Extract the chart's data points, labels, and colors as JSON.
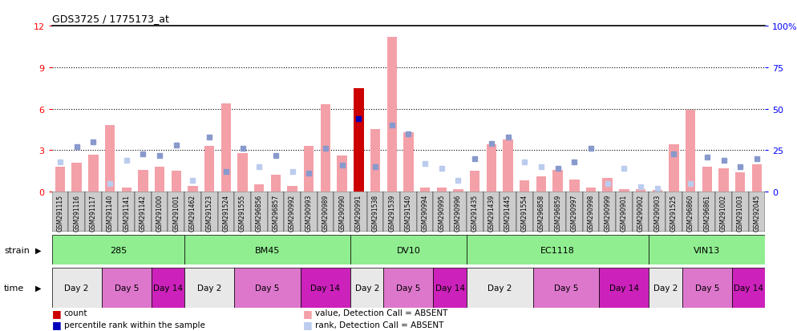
{
  "title": "GDS3725 / 1775173_at",
  "samples": [
    "GSM291115",
    "GSM291116",
    "GSM291117",
    "GSM291140",
    "GSM291141",
    "GSM291142",
    "GSM291000",
    "GSM291001",
    "GSM291462",
    "GSM291523",
    "GSM291524",
    "GSM291555",
    "GSM296856",
    "GSM296857",
    "GSM290992",
    "GSM290993",
    "GSM290989",
    "GSM290990",
    "GSM290991",
    "GSM291538",
    "GSM291539",
    "GSM291540",
    "GSM290994",
    "GSM290995",
    "GSM290996",
    "GSM291435",
    "GSM291439",
    "GSM291445",
    "GSM291554",
    "GSM296858",
    "GSM296859",
    "GSM290997",
    "GSM290998",
    "GSM290999",
    "GSM290901",
    "GSM290902",
    "GSM290903",
    "GSM291525",
    "GSM296860",
    "GSM296861",
    "GSM291002",
    "GSM291003",
    "GSM292045"
  ],
  "values": [
    1.8,
    2.1,
    2.7,
    4.8,
    0.3,
    1.6,
    1.8,
    1.5,
    0.4,
    3.3,
    6.4,
    2.8,
    0.5,
    1.2,
    0.4,
    3.3,
    6.3,
    2.6,
    7.5,
    4.5,
    11.2,
    4.3,
    0.3,
    0.3,
    0.2,
    1.5,
    3.4,
    3.8,
    0.8,
    1.1,
    1.6,
    0.9,
    0.3,
    1.0,
    0.2,
    0.2,
    0.1,
    3.4,
    5.9,
    1.8,
    1.7,
    1.4,
    2.0
  ],
  "ranks_pct": [
    18,
    27,
    30,
    5,
    19,
    23,
    22,
    28,
    7,
    33,
    12,
    26,
    15,
    22,
    12,
    11,
    26,
    16,
    44,
    15,
    40,
    35,
    17,
    14,
    7,
    20,
    29,
    33,
    18,
    15,
    14,
    18,
    26,
    5,
    14,
    3,
    2,
    23,
    5,
    21,
    19,
    15,
    20
  ],
  "detection_absent": [
    true,
    false,
    false,
    true,
    true,
    false,
    false,
    false,
    true,
    false,
    false,
    false,
    true,
    false,
    true,
    false,
    false,
    false,
    false,
    false,
    false,
    false,
    true,
    true,
    true,
    false,
    false,
    false,
    true,
    true,
    false,
    false,
    false,
    true,
    true,
    true,
    true,
    false,
    true,
    false,
    false,
    false,
    false
  ],
  "highlight_idx": 18,
  "ylim_left": [
    0,
    12
  ],
  "ylim_right": [
    0,
    100
  ],
  "yticks_left": [
    0,
    3,
    6,
    9,
    12
  ],
  "yticks_right": [
    0,
    25,
    50,
    75,
    100
  ],
  "bar_color": "#F4A0A8",
  "rank_color_present": "#8899CC",
  "rank_color_absent": "#BBCCEE",
  "highlight_value_color": "#CC0000",
  "highlight_rank_color": "#0000BB",
  "strain_bg_color": "#90EE90",
  "time_day2_color": "#E8E8E8",
  "time_day5_color": "#DD77CC",
  "time_day14_color": "#CC22BB",
  "strain_info": [
    [
      "285",
      0,
      7
    ],
    [
      "BM45",
      8,
      17
    ],
    [
      "DV10",
      18,
      24
    ],
    [
      "EC1118",
      25,
      35
    ],
    [
      "VIN13",
      36,
      42
    ]
  ],
  "time_info": [
    [
      "Day 2",
      0,
      2,
      "#E8E8E8"
    ],
    [
      "Day 5",
      3,
      5,
      "#DD77CC"
    ],
    [
      "Day 14",
      6,
      7,
      "#CC22BB"
    ],
    [
      "Day 2",
      8,
      10,
      "#E8E8E8"
    ],
    [
      "Day 5",
      11,
      14,
      "#DD77CC"
    ],
    [
      "Day 14",
      15,
      17,
      "#CC22BB"
    ],
    [
      "Day 2",
      18,
      19,
      "#E8E8E8"
    ],
    [
      "Day 5",
      20,
      22,
      "#DD77CC"
    ],
    [
      "Day 14",
      23,
      24,
      "#CC22BB"
    ],
    [
      "Day 2",
      25,
      28,
      "#E8E8E8"
    ],
    [
      "Day 5",
      29,
      32,
      "#DD77CC"
    ],
    [
      "Day 14",
      33,
      35,
      "#CC22BB"
    ],
    [
      "Day 2",
      36,
      37,
      "#E8E8E8"
    ],
    [
      "Day 5",
      38,
      40,
      "#DD77CC"
    ],
    [
      "Day 14",
      41,
      42,
      "#CC22BB"
    ]
  ]
}
